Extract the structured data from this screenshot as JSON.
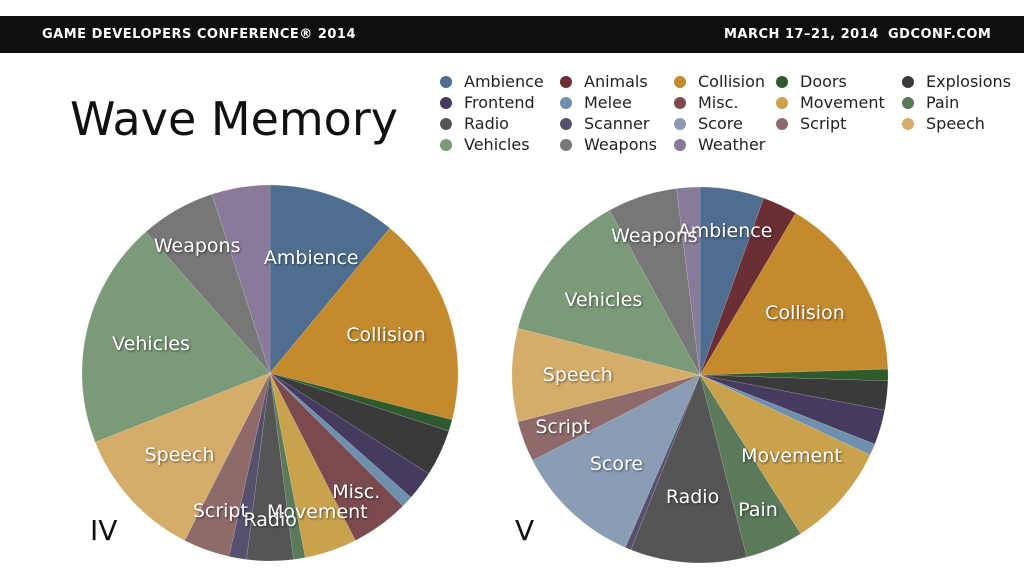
{
  "banner": {
    "left": "GAME DEVELOPERS CONFERENCE® 2014",
    "dates": "MARCH 17–21, 2014",
    "site": "GDCONF.COM"
  },
  "title": "Wave Memory",
  "legend": [
    {
      "name": "Ambience",
      "color": "#4f6d8e"
    },
    {
      "name": "Animals",
      "color": "#6a2f35"
    },
    {
      "name": "Collision",
      "color": "#c48a2e"
    },
    {
      "name": "Doors",
      "color": "#2e5a2e"
    },
    {
      "name": "Explosions",
      "color": "#3a3a3a"
    },
    {
      "name": "Frontend",
      "color": "#463a5e"
    },
    {
      "name": "Melee",
      "color": "#6e8fae"
    },
    {
      "name": "Misc.",
      "color": "#7a4a4e"
    },
    {
      "name": "Movement",
      "color": "#c9a24e"
    },
    {
      "name": "Pain",
      "color": "#5a7a5a"
    },
    {
      "name": "Radio",
      "color": "#555555"
    },
    {
      "name": "Scanner",
      "color": "#56506e"
    },
    {
      "name": "Score",
      "color": "#8a9db5"
    },
    {
      "name": "Script",
      "color": "#8e6a6a"
    },
    {
      "name": "Speech",
      "color": "#d4ad6a"
    },
    {
      "name": "Vehicles",
      "color": "#7a9a78"
    },
    {
      "name": "Weapons",
      "color": "#777777"
    },
    {
      "name": "Weather",
      "color": "#8a7a9a"
    }
  ],
  "chart_data": [
    {
      "type": "pie",
      "title": "IV",
      "slices": [
        {
          "name": "Ambience",
          "value": 11.0,
          "label": "Ambience"
        },
        {
          "name": "Collision",
          "value": 18.0,
          "label": "Collision"
        },
        {
          "name": "Doors",
          "value": 1.0,
          "label": ""
        },
        {
          "name": "Explosions",
          "value": 4.0,
          "label": ""
        },
        {
          "name": "Frontend",
          "value": 2.5,
          "label": ""
        },
        {
          "name": "Melee",
          "value": 1.0,
          "label": ""
        },
        {
          "name": "Misc.",
          "value": 5.0,
          "label": "Misc."
        },
        {
          "name": "Movement",
          "value": 4.5,
          "label": "Movement"
        },
        {
          "name": "Pain",
          "value": 1.0,
          "label": ""
        },
        {
          "name": "Radio",
          "value": 4.0,
          "label": "Radio"
        },
        {
          "name": "Scanner",
          "value": 1.5,
          "label": ""
        },
        {
          "name": "Script",
          "value": 4.0,
          "label": "Script"
        },
        {
          "name": "Speech",
          "value": 11.5,
          "label": "Speech"
        },
        {
          "name": "Vehicles",
          "value": 19.5,
          "label": "Vehicles"
        },
        {
          "name": "Weapons",
          "value": 6.5,
          "label": "Weapons"
        },
        {
          "name": "Weather",
          "value": 5.0,
          "label": ""
        }
      ]
    },
    {
      "type": "pie",
      "title": "V",
      "slices": [
        {
          "name": "Ambience",
          "value": 5.5,
          "label": "Ambience"
        },
        {
          "name": "Animals",
          "value": 3.0,
          "label": ""
        },
        {
          "name": "Collision",
          "value": 16.0,
          "label": "Collision"
        },
        {
          "name": "Doors",
          "value": 1.0,
          "label": ""
        },
        {
          "name": "Explosions",
          "value": 2.5,
          "label": ""
        },
        {
          "name": "Frontend",
          "value": 3.0,
          "label": ""
        },
        {
          "name": "Melee",
          "value": 1.0,
          "label": ""
        },
        {
          "name": "Movement",
          "value": 9.0,
          "label": "Movement"
        },
        {
          "name": "Pain",
          "value": 5.0,
          "label": "Pain"
        },
        {
          "name": "Radio",
          "value": 10.0,
          "label": "Radio"
        },
        {
          "name": "Scanner",
          "value": 0.5,
          "label": ""
        },
        {
          "name": "Score",
          "value": 11.0,
          "label": "Score"
        },
        {
          "name": "Script",
          "value": 3.5,
          "label": "Script"
        },
        {
          "name": "Speech",
          "value": 8.0,
          "label": "Speech"
        },
        {
          "name": "Vehicles",
          "value": 13.0,
          "label": "Vehicles"
        },
        {
          "name": "Weapons",
          "value": 6.0,
          "label": "Weapons"
        },
        {
          "name": "Weather",
          "value": 2.0,
          "label": ""
        }
      ]
    }
  ]
}
